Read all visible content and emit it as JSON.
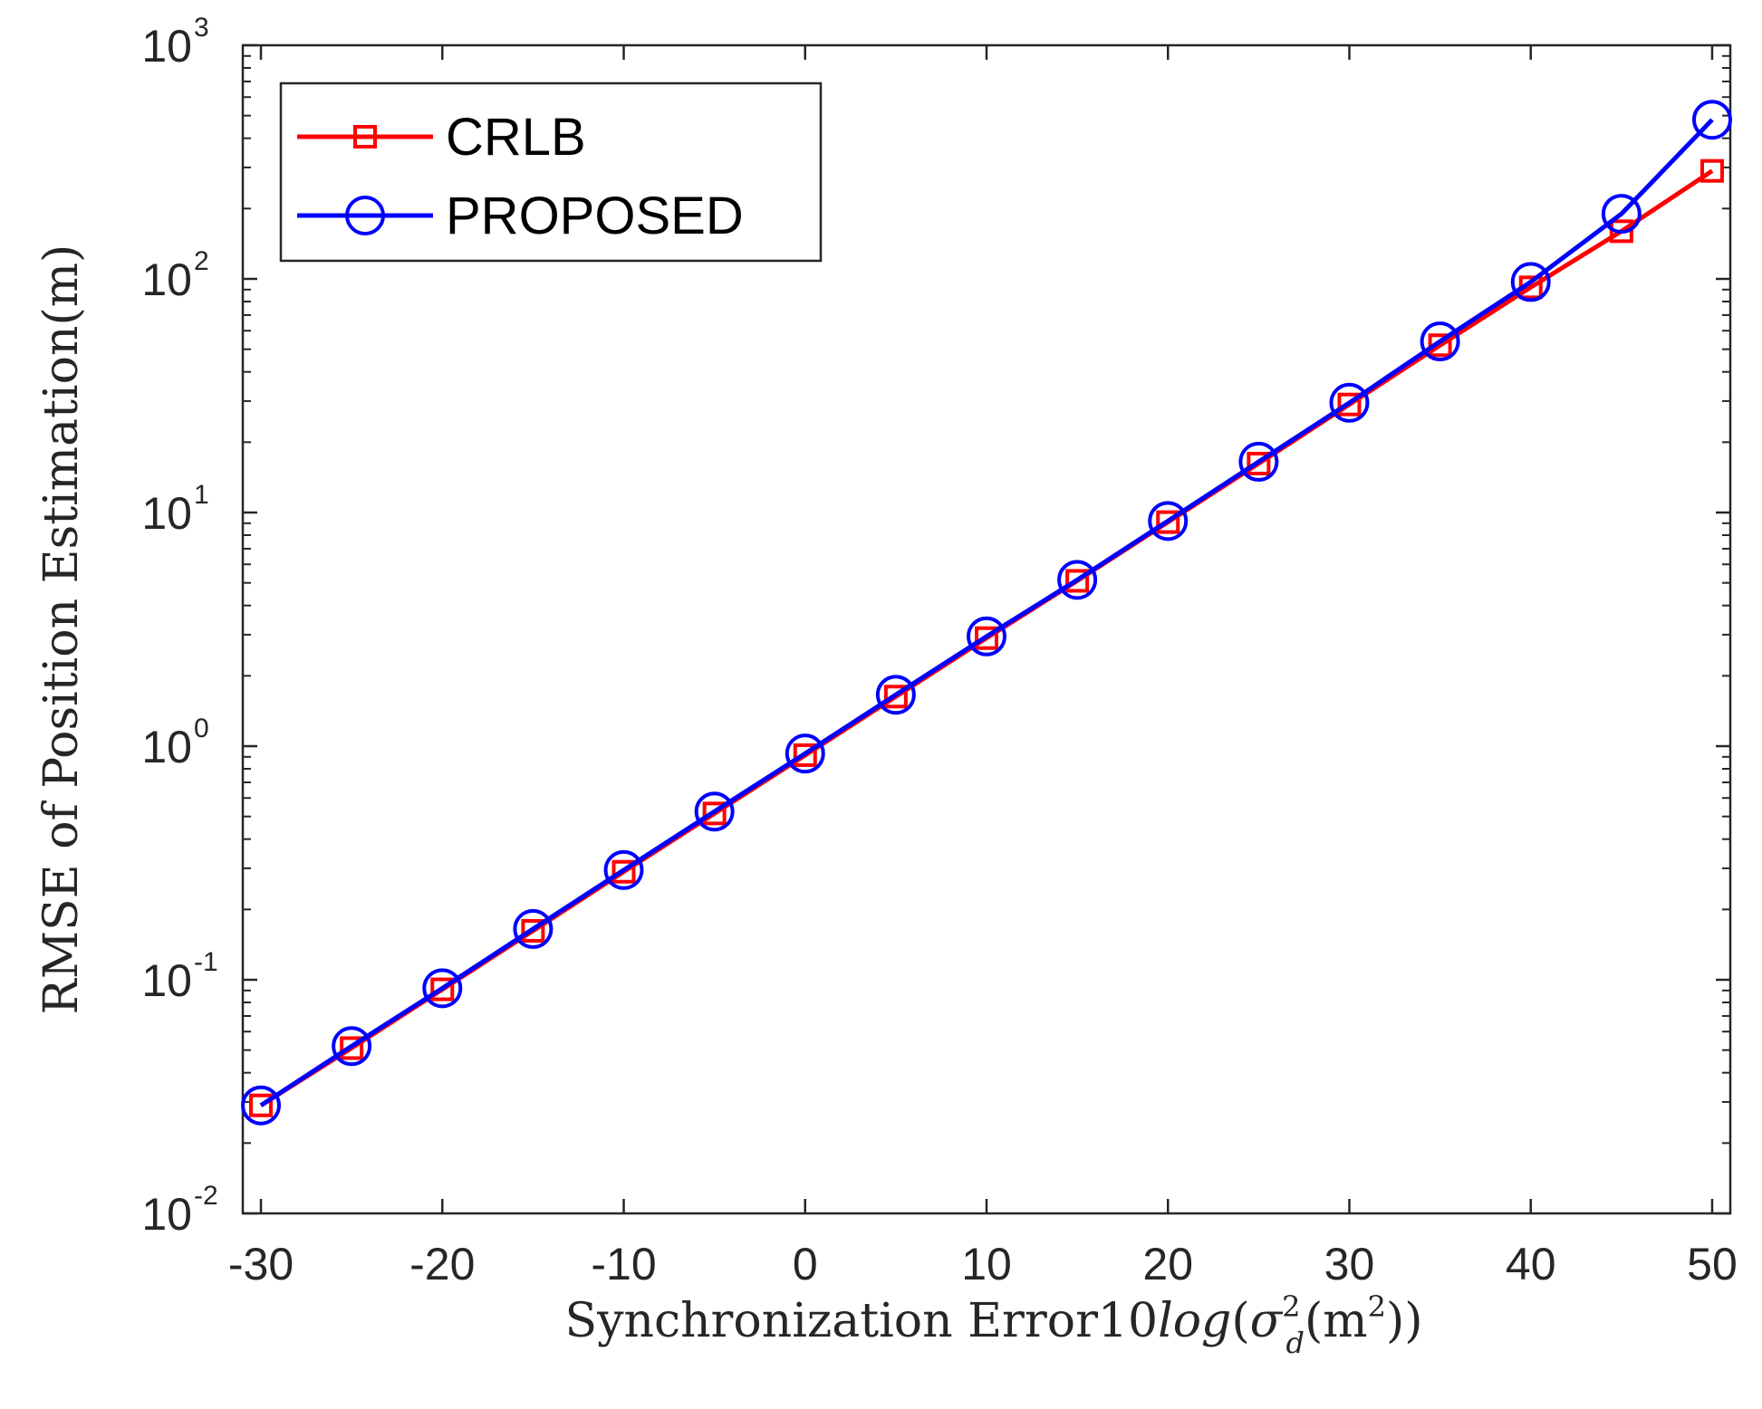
{
  "chart_data": {
    "type": "line",
    "y_scale": "log",
    "grid": false,
    "legend_position": "top-left",
    "xlabel": {
      "prefix": "Synchronization Error10",
      "func": "log",
      "open": "(",
      "sigma": "σ",
      "sigma_sup": "2",
      "sigma_sub": "d",
      "inner": "(m",
      "inner_sup": "2",
      "close": "))"
    },
    "ylabel": "RMSE of Position Estimation(m)",
    "xlim": [
      -31,
      51
    ],
    "ylim": [
      0.01,
      1000
    ],
    "x_ticks": [
      {
        "value": -30,
        "label": "-30"
      },
      {
        "value": -20,
        "label": "-20"
      },
      {
        "value": -10,
        "label": "-10"
      },
      {
        "value": 0,
        "label": "0"
      },
      {
        "value": 10,
        "label": "10"
      },
      {
        "value": 20,
        "label": "20"
      },
      {
        "value": 30,
        "label": "30"
      },
      {
        "value": 40,
        "label": "40"
      },
      {
        "value": 50,
        "label": "50"
      }
    ],
    "y_ticks": [
      {
        "value": 0.01,
        "base": "10",
        "exp": "-2"
      },
      {
        "value": 0.1,
        "base": "10",
        "exp": "-1"
      },
      {
        "value": 1,
        "base": "10",
        "exp": "0"
      },
      {
        "value": 10,
        "base": "10",
        "exp": "1"
      },
      {
        "value": 100,
        "base": "10",
        "exp": "2"
      },
      {
        "value": 1000,
        "base": "10",
        "exp": "3"
      }
    ],
    "x": [
      -30,
      -25,
      -20,
      -15,
      -10,
      -5,
      0,
      5,
      10,
      15,
      20,
      25,
      30,
      35,
      40,
      45,
      50
    ],
    "series": [
      {
        "name": "CRLB",
        "color": "#ff0000",
        "marker": "square",
        "values": [
          0.029,
          0.051,
          0.091,
          0.162,
          0.29,
          0.515,
          0.915,
          1.63,
          2.9,
          5.1,
          9.1,
          16.2,
          29.0,
          52,
          92,
          160,
          290
        ]
      },
      {
        "name": "PROPOSED",
        "color": "#0000ff",
        "marker": "circle",
        "values": [
          0.029,
          0.052,
          0.092,
          0.165,
          0.295,
          0.525,
          0.93,
          1.66,
          2.95,
          5.15,
          9.2,
          16.5,
          29.5,
          54,
          97,
          190,
          480
        ]
      }
    ]
  }
}
